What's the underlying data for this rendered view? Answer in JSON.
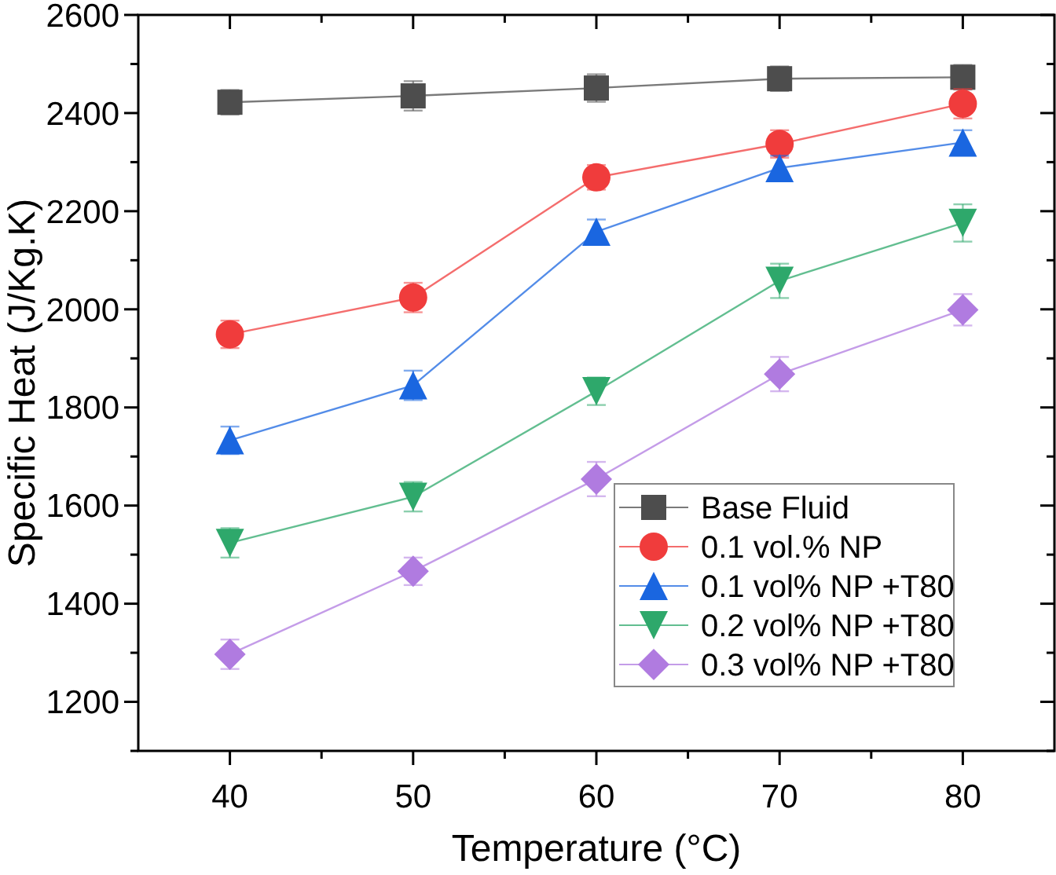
{
  "chart_data": {
    "type": "line",
    "xlabel": "Temperature (°C)",
    "ylabel": "Specific Heat (J/Kg.K)",
    "x": [
      40,
      50,
      60,
      70,
      80
    ],
    "xlim": [
      35,
      85
    ],
    "xticks": [
      40,
      {
        "value": 45,
        "label": null
      },
      50,
      {
        "value": 55,
        "label": null
      },
      60,
      {
        "value": 65,
        "label": null
      },
      70,
      {
        "value": 75,
        "label": null
      },
      80
    ],
    "ylim": [
      1100,
      2600
    ],
    "yticks": [
      {
        "value": 1100,
        "label": null
      },
      1200,
      {
        "value": 1300,
        "label": null
      },
      1400,
      {
        "value": 1500,
        "label": null
      },
      1600,
      {
        "value": 1700,
        "label": null
      },
      1800,
      {
        "value": 1900,
        "label": null
      },
      2000,
      {
        "value": 2100,
        "label": null
      },
      2200,
      {
        "value": 2300,
        "label": null
      },
      2400,
      {
        "value": 2500,
        "label": null
      },
      2600
    ],
    "legend": "bottom right",
    "grid": false,
    "line_style": "solid",
    "series": [
      {
        "name": "Base Fluid",
        "color": "#4d4d4d",
        "marker": "square",
        "values": [
          2422,
          2435,
          2451,
          2470,
          2473
        ],
        "errors": [
          25,
          30,
          28,
          25,
          25
        ]
      },
      {
        "name": "0.1 vol.% NP",
        "color": "#f03c3c",
        "marker": "circle",
        "values": [
          1949,
          2024,
          2269,
          2337,
          2419
        ],
        "errors": [
          28,
          30,
          25,
          28,
          30
        ]
      },
      {
        "name": "0.1 vol% NP +T80",
        "color": "#1a66e0",
        "marker": "triangle",
        "values": [
          1733,
          1845,
          2158,
          2288,
          2340
        ],
        "errors": [
          28,
          30,
          25,
          25,
          25
        ]
      },
      {
        "name": "0.2 vol% NP +T80",
        "color": "#2ea86b",
        "marker": "triangle-down",
        "values": [
          1524,
          1618,
          1833,
          2058,
          2176
        ],
        "errors": [
          30,
          30,
          28,
          35,
          38
        ]
      },
      {
        "name": "0.3 vol% NP +T80",
        "color": "#b07be0",
        "marker": "diamond",
        "values": [
          1297,
          1466,
          1654,
          1868,
          1999
        ],
        "errors": [
          30,
          28,
          35,
          35,
          32
        ]
      }
    ]
  }
}
